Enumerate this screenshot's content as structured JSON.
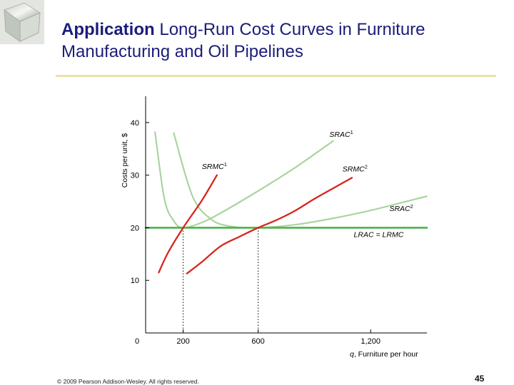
{
  "slide": {
    "title_bold": "Application",
    "title_rest": " Long-Run Cost Curves in Furniture Manufacturing and Oil Pipelines",
    "copyright": "© 2009 Pearson Addison-Wesley. All rights reserved.",
    "page_number": "45"
  },
  "colors": {
    "sr_cost": "#a8d39a",
    "marginal": "#d6261c",
    "long_run": "#4db14f",
    "title": "#1c1c7a",
    "rule": "#ece0a6"
  },
  "chart_data": {
    "type": "line",
    "ylabel": "Costs per unit, $",
    "xlabel": "q, Furniture per hour",
    "xlim": [
      0,
      1500
    ],
    "ylim": [
      0,
      45
    ],
    "x_ticks": [
      {
        "value": 0,
        "label": "0"
      },
      {
        "value": 200,
        "label": "200"
      },
      {
        "value": 600,
        "label": "600"
      },
      {
        "value": 1200,
        "label": "1,200"
      }
    ],
    "y_ticks": [
      {
        "value": 10,
        "label": "10"
      },
      {
        "value": 20,
        "label": "20"
      },
      {
        "value": 30,
        "label": "30"
      },
      {
        "value": 40,
        "label": "40"
      }
    ],
    "series": [
      {
        "key": "srac1",
        "name": "SRAC",
        "sup": "1",
        "color_key": "sr_cost",
        "label_at": [
          980,
          37.3
        ],
        "points": [
          [
            50,
            38.2
          ],
          [
            100,
            25.5
          ],
          [
            150,
            21.3
          ],
          [
            200,
            20
          ],
          [
            300,
            21
          ],
          [
            400,
            22.8
          ],
          [
            600,
            27
          ],
          [
            800,
            31.5
          ],
          [
            1000,
            36.5
          ]
        ]
      },
      {
        "key": "srmc1",
        "name": "SRMC",
        "sup": "1",
        "color_key": "marginal",
        "label_at": [
          300,
          31.2
        ],
        "points": [
          [
            70,
            11.5
          ],
          [
            120,
            15.3
          ],
          [
            200,
            20
          ],
          [
            300,
            25.2
          ],
          [
            380,
            30
          ]
        ]
      },
      {
        "key": "srac2",
        "name": "SRAC",
        "sup": "2",
        "color_key": "sr_cost",
        "label_at": [
          1300,
          23.2
        ],
        "points": [
          [
            150,
            38
          ],
          [
            250,
            26
          ],
          [
            350,
            21.6
          ],
          [
            450,
            20.3
          ],
          [
            600,
            20
          ],
          [
            800,
            20.6
          ],
          [
            1000,
            21.8
          ],
          [
            1200,
            23.3
          ],
          [
            1500,
            26
          ]
        ]
      },
      {
        "key": "srmc2",
        "name": "SRMC",
        "sup": "2",
        "color_key": "marginal",
        "label_at": [
          1050,
          30.7
        ],
        "points": [
          [
            220,
            11.3
          ],
          [
            300,
            13.5
          ],
          [
            400,
            16.5
          ],
          [
            500,
            18.3
          ],
          [
            600,
            20
          ],
          [
            700,
            21.5
          ],
          [
            800,
            23.3
          ],
          [
            900,
            25.5
          ],
          [
            1000,
            27.5
          ],
          [
            1100,
            29.5
          ]
        ]
      },
      {
        "key": "lrac",
        "name": "LRAC = LRMC",
        "sup": "",
        "color_key": "long_run",
        "label_at": [
          1110,
          18.2
        ],
        "points": [
          [
            0,
            20
          ],
          [
            1500,
            20
          ]
        ]
      }
    ],
    "guides": [
      {
        "x": 200,
        "y": 20
      },
      {
        "x": 600,
        "y": 20
      }
    ],
    "grid": false,
    "legend": "none"
  }
}
